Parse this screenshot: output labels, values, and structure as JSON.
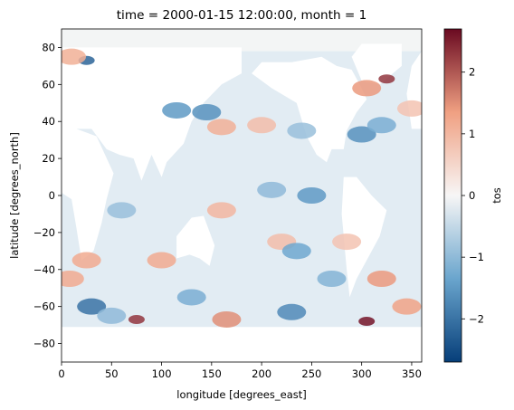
{
  "chart_data": {
    "type": "heatmap",
    "title": "time = 2000-01-15 12:00:00, month = 1",
    "xlabel": "longitude [degrees_east]",
    "ylabel": "latitude [degrees_north]",
    "xlim": [
      0,
      360
    ],
    "ylim": [
      -90,
      90
    ],
    "xticks": [
      "0",
      "50",
      "100",
      "150",
      "200",
      "250",
      "300",
      "350"
    ],
    "yticks": [
      "80",
      "60",
      "40",
      "20",
      "0",
      "−20",
      "−40",
      "−60",
      "−80"
    ],
    "grid": false,
    "colorbar": {
      "label": "tos",
      "colormap": "RdBu_r",
      "range": [
        -2.7,
        2.7
      ],
      "ticks": [
        "2",
        "1",
        "0",
        "−1",
        "−2"
      ]
    },
    "colors": {
      "neg_max": "#063e79",
      "neg_mid": "#6aa5cd",
      "zero": "#f7f6f6",
      "pos_mid": "#f0a082",
      "pos_max": "#6a0a21",
      "missing": "#ffffff"
    },
    "anomalies": [
      {
        "lon": 25,
        "lat": 73,
        "value": -2.2
      },
      {
        "lon": 10,
        "lat": 75,
        "value": 1.1
      },
      {
        "lon": 115,
        "lat": 46,
        "value": -1.5
      },
      {
        "lon": 145,
        "lat": 45,
        "value": -1.6
      },
      {
        "lon": 160,
        "lat": 37,
        "value": 1.1
      },
      {
        "lon": 200,
        "lat": 38,
        "value": 0.9
      },
      {
        "lon": 240,
        "lat": 35,
        "value": -0.9
      },
      {
        "lon": 300,
        "lat": 33,
        "value": -1.6
      },
      {
        "lon": 320,
        "lat": 38,
        "value": -1.2
      },
      {
        "lon": 305,
        "lat": 58,
        "value": 1.4
      },
      {
        "lon": 325,
        "lat": 63,
        "value": 2.3
      },
      {
        "lon": 350,
        "lat": 47,
        "value": 0.8
      },
      {
        "lon": 250,
        "lat": 0,
        "value": -1.5
      },
      {
        "lon": 210,
        "lat": 3,
        "value": -1.0
      },
      {
        "lon": 160,
        "lat": -8,
        "value": 1.0
      },
      {
        "lon": 220,
        "lat": -25,
        "value": 0.9
      },
      {
        "lon": 235,
        "lat": -30,
        "value": -1.3
      },
      {
        "lon": 60,
        "lat": -8,
        "value": -0.9
      },
      {
        "lon": 100,
        "lat": -35,
        "value": 1.2
      },
      {
        "lon": 25,
        "lat": -35,
        "value": 1.2
      },
      {
        "lon": 8,
        "lat": -45,
        "value": 1.2
      },
      {
        "lon": 320,
        "lat": -45,
        "value": 1.4
      },
      {
        "lon": 270,
        "lat": -45,
        "value": -1.1
      },
      {
        "lon": 285,
        "lat": -25,
        "value": 0.8
      },
      {
        "lon": 30,
        "lat": -60,
        "value": -2.0
      },
      {
        "lon": 130,
        "lat": -55,
        "value": -1.2
      },
      {
        "lon": 230,
        "lat": -63,
        "value": -1.7
      },
      {
        "lon": 75,
        "lat": -67,
        "value": 2.3
      },
      {
        "lon": 305,
        "lat": -68,
        "value": 2.6
      },
      {
        "lon": 165,
        "lat": -67,
        "value": 1.5
      },
      {
        "lon": 50,
        "lat": -65,
        "value": -1.0
      },
      {
        "lon": 345,
        "lat": -60,
        "value": 1.3
      }
    ]
  }
}
